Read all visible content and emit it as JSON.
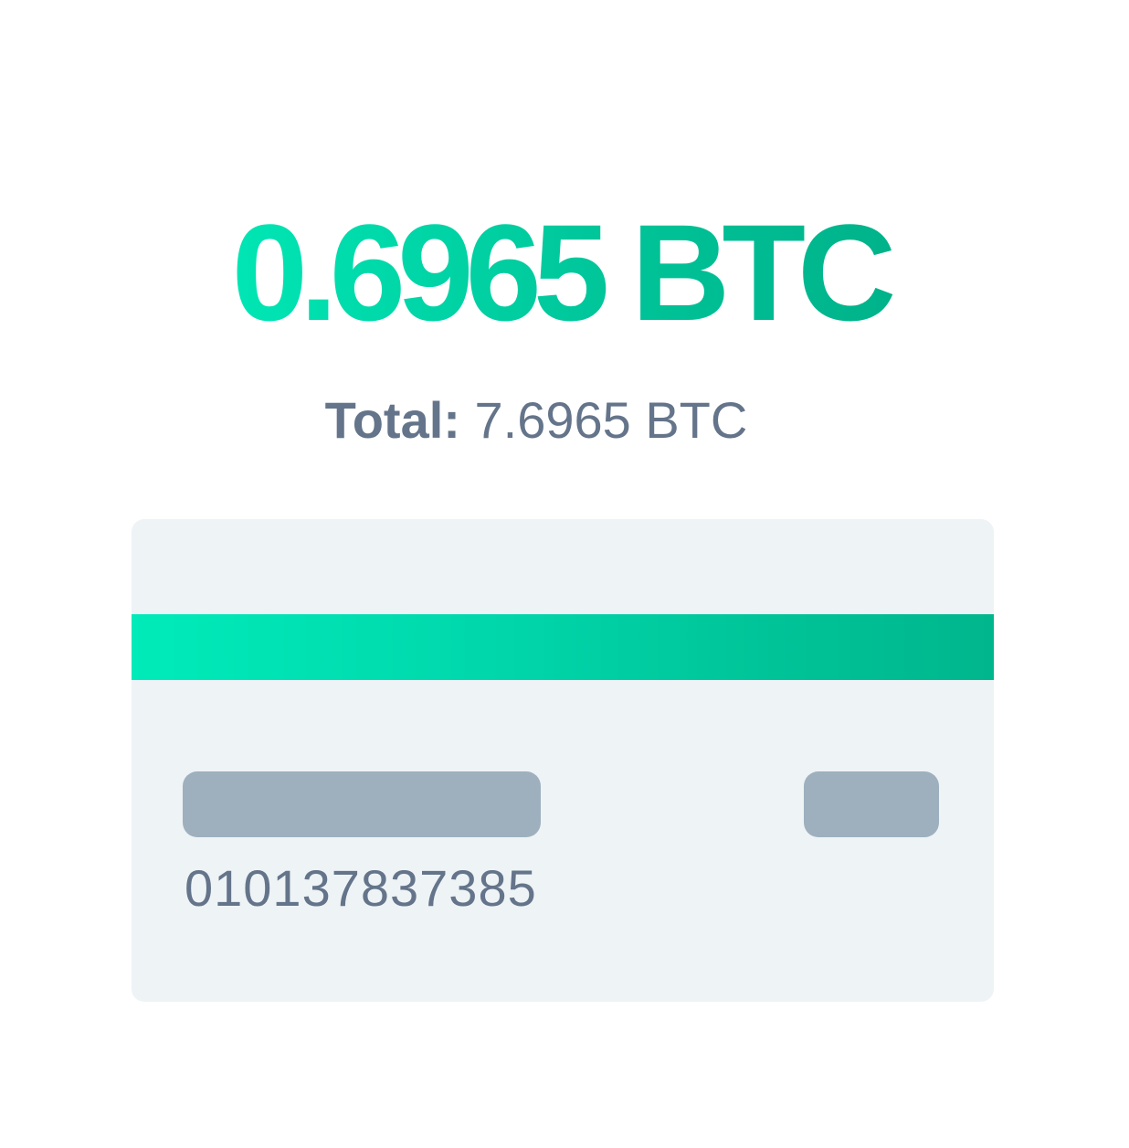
{
  "balance": {
    "amount": "0.6965 BTC"
  },
  "total": {
    "label": "Total:",
    "value": "7.6965 BTC"
  },
  "card": {
    "number": "010137837385"
  },
  "colors": {
    "accent_start": "#00ebb9",
    "accent_end": "#00b68d",
    "text_muted": "#64748a",
    "card_background": "#eef3f6",
    "placeholder_bar": "#9eb0be"
  }
}
